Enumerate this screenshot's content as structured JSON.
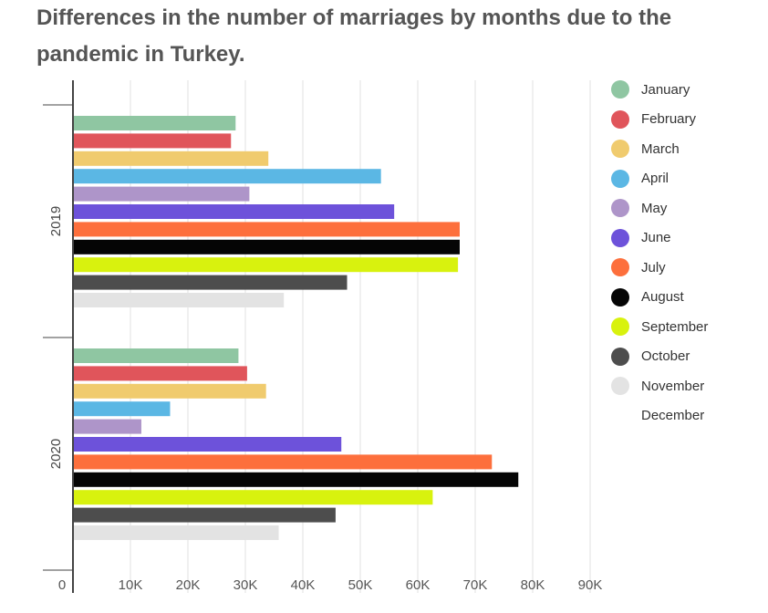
{
  "title": "Differences in the number of marriages by months due to the pandemic in Turkey.",
  "chart_data": {
    "type": "bar",
    "orientation": "horizontal",
    "categories": [
      "2019",
      "2020"
    ],
    "series": [
      {
        "name": "January",
        "color": "#8fc6a2",
        "values": [
          28300,
          28800
        ]
      },
      {
        "name": "February",
        "color": "#e0555b",
        "values": [
          27500,
          30300
        ]
      },
      {
        "name": "March",
        "color": "#f0cb6e",
        "values": [
          34000,
          33600
        ]
      },
      {
        "name": "April",
        "color": "#5bb7e4",
        "values": [
          53600,
          16900
        ]
      },
      {
        "name": "May",
        "color": "#ae95c9",
        "values": [
          30700,
          11900
        ]
      },
      {
        "name": "June",
        "color": "#6d52da",
        "values": [
          55900,
          46700
        ]
      },
      {
        "name": "July",
        "color": "#fd6f3c",
        "values": [
          67300,
          72900
        ]
      },
      {
        "name": "August",
        "color": "#050505",
        "values": [
          67300,
          77500
        ]
      },
      {
        "name": "September",
        "color": "#d8f20e",
        "values": [
          67000,
          62600
        ]
      },
      {
        "name": "October",
        "color": "#4d4d4d",
        "values": [
          47700,
          45700
        ]
      },
      {
        "name": "November",
        "color": "#e3e3e3",
        "values": [
          36700,
          35800
        ]
      },
      {
        "name": "December",
        "color": "#ffffff",
        "values": [
          null,
          null
        ]
      }
    ],
    "x_ticks": [
      "0",
      "10K",
      "20K",
      "30K",
      "40K",
      "50K",
      "60K",
      "70K",
      "80K",
      "90K"
    ],
    "xlim": [
      0,
      90000
    ],
    "xlabel": "",
    "ylabel": "",
    "grid": true,
    "legend_position": "right"
  }
}
